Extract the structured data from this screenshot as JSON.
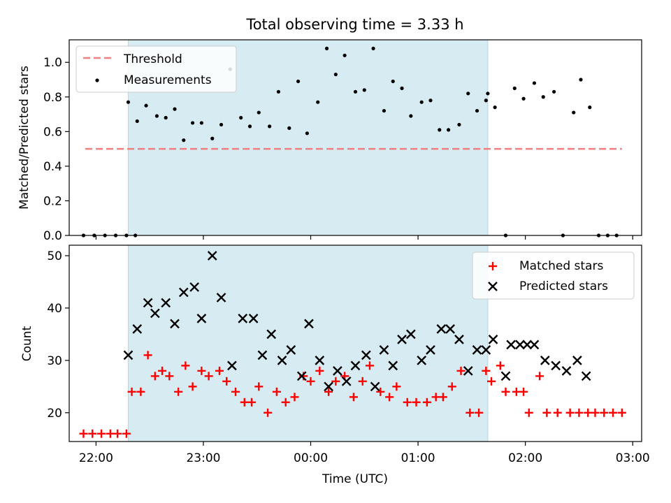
{
  "chart_data": [
    {
      "type": "scatter",
      "title": "Total observing time = 3.33 h",
      "xlabel": "",
      "ylabel": "Matched/Predicted stars",
      "xlim": [
        "21:45",
        "03:05"
      ],
      "ylim": [
        0,
        1.13
      ],
      "yticks": [
        0.0,
        0.2,
        0.4,
        0.6,
        0.8,
        1.0
      ],
      "ytick_labels": [
        "0.0",
        "0.2",
        "0.4",
        "0.6",
        "0.8",
        "1.0"
      ],
      "xticks": [
        "22:00",
        "23:00",
        "00:00",
        "01:00",
        "02:00",
        "03:00"
      ],
      "shaded_region": [
        "22:18",
        "01:39"
      ],
      "legend_position": "upper-left",
      "threshold": {
        "name": "Threshold",
        "value": 0.5,
        "x_range": [
          "21:54",
          "02:54"
        ],
        "color": "#f08080"
      },
      "series": [
        {
          "name": "Measurements",
          "color": "#000000",
          "x": [
            "21:53",
            "21:59",
            "22:05",
            "22:11",
            "22:17",
            "22:22",
            "22:18",
            "22:23",
            "22:28",
            "22:34",
            "22:39",
            "22:44",
            "22:49",
            "22:54",
            "22:59",
            "23:05",
            "23:10",
            "23:15",
            "23:21",
            "23:26",
            "23:31",
            "23:37",
            "23:42",
            "23:48",
            "23:53",
            "23:58",
            "00:04",
            "00:09",
            "00:14",
            "00:19",
            "00:25",
            "00:30",
            "00:35",
            "00:41",
            "00:46",
            "00:51",
            "00:56",
            "01:02",
            "01:07",
            "01:12",
            "01:17",
            "01:23",
            "01:28",
            "01:33",
            "01:38",
            "01:39",
            "01:43",
            "01:49",
            "01:54",
            "01:59",
            "02:05",
            "02:10",
            "02:16",
            "02:21",
            "02:27",
            "02:31",
            "02:36",
            "02:41",
            "02:46",
            "02:51"
          ],
          "y": [
            0,
            0,
            0,
            0,
            0,
            0,
            0.77,
            0.66,
            0.75,
            0.69,
            0.68,
            0.73,
            0.55,
            0.65,
            0.65,
            0.56,
            0.64,
            0.96,
            0.68,
            0.63,
            0.71,
            0.63,
            0.83,
            0.62,
            0.89,
            0.59,
            0.77,
            1.08,
            0.93,
            1.04,
            0.83,
            0.84,
            1.08,
            0.72,
            0.89,
            0.85,
            0.69,
            0.77,
            0.78,
            0.61,
            0.61,
            0.64,
            0.82,
            0.72,
            0.78,
            0.82,
            0.74,
            0,
            0.85,
            0.79,
            0.88,
            0.8,
            0.83,
            0,
            0.71,
            0.9,
            0.74,
            0,
            0,
            0
          ]
        }
      ]
    },
    {
      "type": "scatter",
      "title": "",
      "xlabel": "Time (UTC)",
      "ylabel": "Count",
      "xlim": [
        "21:45",
        "03:05"
      ],
      "ylim": [
        14.5,
        52
      ],
      "yticks": [
        20,
        30,
        40,
        50
      ],
      "xticks": [
        "22:00",
        "23:00",
        "00:00",
        "01:00",
        "02:00",
        "03:00"
      ],
      "shaded_region": [
        "22:18",
        "01:39"
      ],
      "legend_position": "upper-right",
      "series": [
        {
          "name": "Matched stars",
          "color": "#ff0000",
          "marker": "plus",
          "x": [
            "21:53",
            "21:58",
            "22:03",
            "22:08",
            "22:12",
            "22:17",
            "22:20",
            "22:25",
            "22:29",
            "22:33",
            "22:37",
            "22:41",
            "22:46",
            "22:50",
            "22:54",
            "22:59",
            "23:03",
            "23:09",
            "23:13",
            "23:18",
            "23:23",
            "23:27",
            "23:31",
            "23:36",
            "23:41",
            "23:46",
            "23:51",
            "23:56",
            "00:00",
            "00:05",
            "00:10",
            "00:14",
            "00:19",
            "00:24",
            "00:29",
            "00:33",
            "00:39",
            "00:44",
            "00:48",
            "00:54",
            "00:59",
            "01:05",
            "01:10",
            "01:14",
            "01:19",
            "01:24",
            "01:29",
            "01:34",
            "01:38",
            "01:41",
            "01:46",
            "01:49",
            "01:55",
            "01:59",
            "02:02",
            "02:08",
            "02:12",
            "02:18",
            "02:25",
            "02:30",
            "02:35",
            "02:39",
            "02:44",
            "02:49",
            "02:54"
          ],
          "y": [
            16,
            16,
            16,
            16,
            16,
            16,
            24,
            24,
            31,
            27,
            28,
            27,
            24,
            29,
            25,
            28,
            27,
            28,
            26,
            24,
            22,
            22,
            25,
            20,
            24,
            22,
            23,
            27,
            26,
            28,
            24,
            26,
            27,
            23,
            26,
            29,
            24,
            23,
            25,
            22,
            22,
            22,
            23,
            23,
            25,
            28,
            20,
            20,
            28,
            26,
            29,
            24,
            24,
            24,
            20,
            27,
            20,
            20,
            20,
            20,
            20,
            20,
            20,
            20,
            20
          ]
        },
        {
          "name": "Predicted stars",
          "color": "#000000",
          "marker": "x",
          "x": [
            "22:18",
            "22:23",
            "22:29",
            "22:33",
            "22:39",
            "22:44",
            "22:49",
            "22:55",
            "22:59",
            "23:05",
            "23:10",
            "23:16",
            "23:22",
            "23:28",
            "23:33",
            "23:38",
            "23:44",
            "23:49",
            "23:55",
            "23:59",
            "00:05",
            "00:10",
            "00:15",
            "00:20",
            "00:25",
            "00:31",
            "00:36",
            "00:41",
            "00:46",
            "00:51",
            "00:56",
            "01:02",
            "01:07",
            "01:13",
            "01:18",
            "01:23",
            "01:28",
            "01:33",
            "01:38",
            "01:42",
            "01:49",
            "01:52",
            "01:57",
            "02:01",
            "02:05",
            "02:11",
            "02:17",
            "02:23",
            "02:29",
            "02:34"
          ],
          "y": [
            31,
            36,
            41,
            39,
            41,
            37,
            43,
            44,
            38,
            50,
            42,
            29,
            38,
            38,
            31,
            35,
            30,
            32,
            27,
            37,
            30,
            25,
            28,
            26,
            29,
            31,
            25,
            32,
            29,
            34,
            35,
            30,
            32,
            36,
            36,
            34,
            28,
            32,
            32,
            34,
            27,
            33,
            33,
            33,
            33,
            30,
            29,
            28,
            30,
            27
          ]
        }
      ]
    }
  ]
}
